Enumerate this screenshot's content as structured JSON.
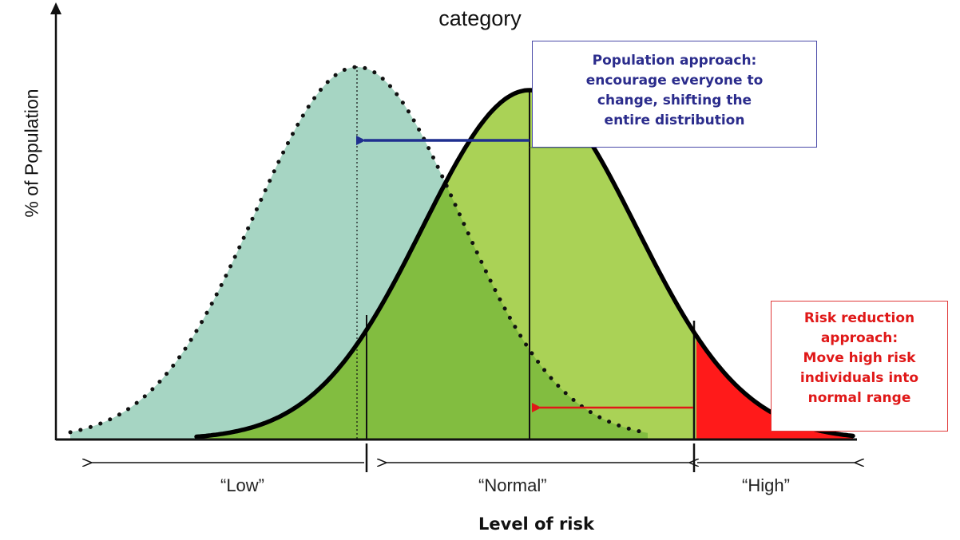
{
  "title": {
    "line2": "category"
  },
  "axes": {
    "y_label": "% of Population",
    "x_label": "Level of risk"
  },
  "categories": {
    "low": "“Low”",
    "normal": "“Normal”",
    "high": "“High”"
  },
  "population_callout": {
    "lines": [
      "Population approach:",
      "encourage everyone to",
      "change, shifting the",
      "entire distribution"
    ]
  },
  "risk_callout": {
    "lines": [
      "Risk reduction",
      "approach:",
      "Move high risk",
      "individuals into",
      "normal range"
    ]
  },
  "colors": {
    "shifted_fill": "#a6d5c3",
    "current_fill": "#aad256",
    "overlap_fill": "#82bd40",
    "high_fill": "#ff1a1a",
    "population_text": "#2b2c8c",
    "population_arrow": "#1f2f8f",
    "risk_text": "#e01818",
    "risk_arrow": "#e01818"
  }
}
